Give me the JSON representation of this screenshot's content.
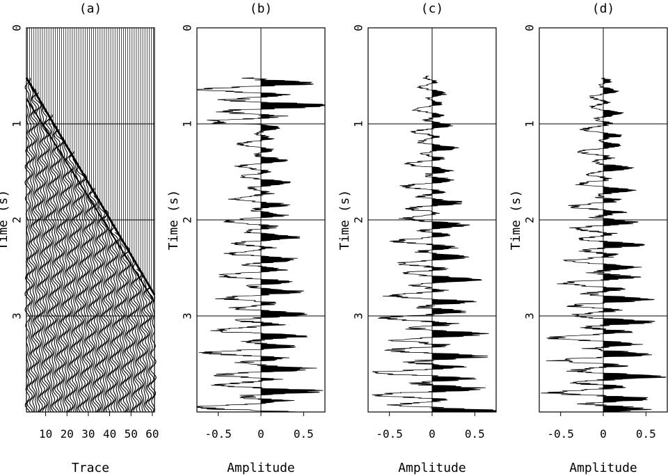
{
  "chart_data": [
    {
      "panel": "(a)",
      "type": "seismic-wiggle",
      "title": "(a)",
      "xlabel": "Trace",
      "ylabel": "Time (s)",
      "xlim": [
        1,
        61
      ],
      "ylim": [
        0,
        4.0
      ],
      "xticks": [
        10,
        20,
        30,
        40,
        50,
        60
      ],
      "yticks": [
        0,
        1,
        2,
        3
      ],
      "grid": "horizontal at 1, 2, 3 s",
      "trace_count": 60,
      "first_arrival": {
        "near_offset_time": 0.52,
        "far_offset_time": 2.78,
        "far_trace": 60
      }
    },
    {
      "panel": "(b)",
      "type": "amplitude-trace",
      "title": "(b)",
      "xlabel": "Amplitude",
      "ylabel": "Time (s)",
      "xlim": [
        -0.75,
        0.75
      ],
      "ylim": [
        0,
        4.0
      ],
      "xticks": [
        -0.5,
        0,
        0.5
      ],
      "yticks": [
        0,
        1,
        2,
        3
      ],
      "onset_time": 0.52,
      "max_positive_amplitude": 0.75
    },
    {
      "panel": "(c)",
      "type": "amplitude-trace",
      "title": "(c)",
      "xlabel": "Amplitude",
      "ylabel": "Time (s)",
      "xlim": [
        -0.75,
        0.75
      ],
      "ylim": [
        0,
        4.0
      ],
      "xticks": [
        -0.5,
        0,
        0.5
      ],
      "yticks": [
        0,
        1,
        2,
        3
      ],
      "onset_time": 0.5,
      "max_positive_amplitude": 0.75
    },
    {
      "panel": "(d)",
      "type": "amplitude-trace",
      "title": "(d)",
      "xlabel": "Amplitude",
      "ylabel": "Time (s)",
      "xlim": [
        -0.75,
        0.75
      ],
      "ylim": [
        0,
        4.0
      ],
      "xticks": [
        -0.5,
        0,
        0.5
      ],
      "yticks": [
        0,
        1,
        2,
        3
      ],
      "onset_time": 0.52,
      "max_positive_amplitude": 0.75
    }
  ]
}
